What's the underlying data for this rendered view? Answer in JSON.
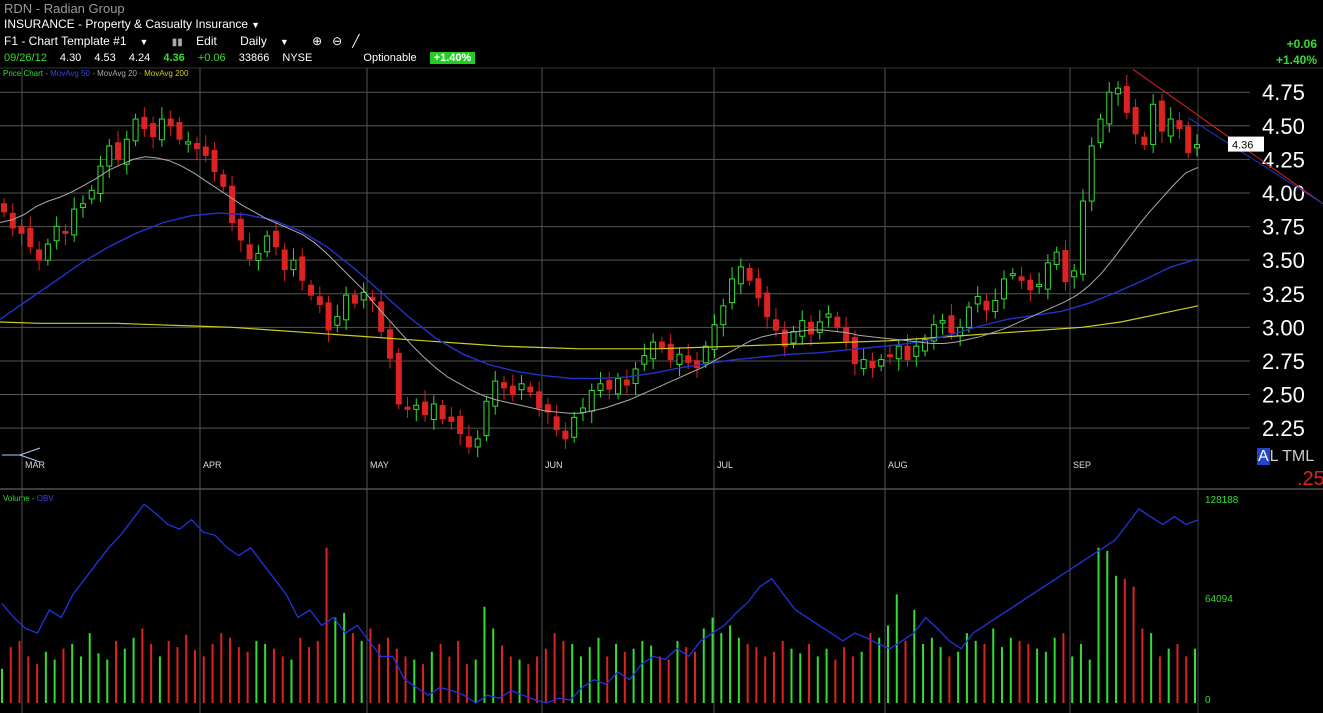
{
  "header": {
    "symbol_line": "RDN - Radian Group",
    "industry": "INSURANCE - Property & Casualty Insurance",
    "template": "F1 - Chart Template #1",
    "edit_label": "Edit",
    "interval": "Daily",
    "change_abs": "+0.06",
    "change_pct": "+1.40%"
  },
  "quote": {
    "date": "09/26/12",
    "open": "4.30",
    "high": "4.53",
    "low": "4.24",
    "close": "4.36",
    "change": "+0.06",
    "volume": "33866",
    "exchange": "NYSE",
    "optionable": "Optionable",
    "pct": "+1.40%"
  },
  "price_panel": {
    "label": "Price Chart",
    "ma1": "MovAvg 50",
    "ma2": "MovAvg 20",
    "ma3": "MovAvg 200",
    "current_price_tag": "4.36"
  },
  "volume_panel": {
    "label": "Volume",
    "obv": "OBV"
  },
  "toolbar_misc": {
    "altml": "AL TML",
    "altml_a": "A",
    "altml_rest": "L TML",
    "partial_value": ".25"
  },
  "colors": {
    "up": "#33dd33",
    "down": "#dd2222",
    "ma50": "#2233cc",
    "ma20": "#aaaaaa",
    "ma200": "#cccc22",
    "obv": "#2233dd",
    "grid": "#555555"
  },
  "chart_data": {
    "type": "candlestick",
    "price_axis": {
      "ticks": [
        "4.75",
        "4.50",
        "4.25",
        "4.00",
        "3.75",
        "3.50",
        "3.25",
        "3.00",
        "2.75",
        "2.50",
        "2.25"
      ],
      "ylim": [
        2.05,
        4.93
      ]
    },
    "month_labels": [
      "MAR",
      "APR",
      "MAY",
      "JUN",
      "JUL",
      "AUG",
      "SEP"
    ],
    "volume_axis": {
      "ticks": [
        "128188",
        "64094",
        "0"
      ],
      "ylim": [
        0,
        128188
      ]
    },
    "closes": [
      3.86,
      3.74,
      3.7,
      3.6,
      3.5,
      3.62,
      3.75,
      3.7,
      3.88,
      3.92,
      4.02,
      4.2,
      4.35,
      4.25,
      4.4,
      4.55,
      4.48,
      4.42,
      4.55,
      4.5,
      4.4,
      4.38,
      4.33,
      4.28,
      4.16,
      4.05,
      3.78,
      3.65,
      3.51,
      3.55,
      3.68,
      3.6,
      3.43,
      3.5,
      3.35,
      3.24,
      3.17,
      2.98,
      3.08,
      3.24,
      3.18,
      3.26,
      3.2,
      2.97,
      2.77,
      2.43,
      2.39,
      2.42,
      2.35,
      2.43,
      2.32,
      2.3,
      2.21,
      2.11,
      2.17,
      2.45,
      2.6,
      2.55,
      2.5,
      2.58,
      2.52,
      2.4,
      2.37,
      2.24,
      2.17,
      2.33,
      2.4,
      2.53,
      2.58,
      2.54,
      2.62,
      2.57,
      2.69,
      2.79,
      2.89,
      2.85,
      2.76,
      2.8,
      2.74,
      2.7,
      2.86,
      3.02,
      3.16,
      3.36,
      3.45,
      3.35,
      3.22,
      3.08,
      2.98,
      2.86,
      2.97,
      3.05,
      2.95,
      3.04,
      3.1,
      3.0,
      2.9,
      2.73,
      2.76,
      2.7,
      2.76,
      2.79,
      2.86,
      2.76,
      2.86,
      2.91,
      3.02,
      3.05,
      2.96,
      3.0,
      3.15,
      3.23,
      3.13,
      3.2,
      3.36,
      3.4,
      3.35,
      3.28,
      3.32,
      3.48,
      3.56,
      3.34,
      3.42,
      3.94,
      4.35,
      4.55,
      4.75,
      4.78,
      4.6,
      4.44,
      4.36,
      4.66,
      4.46,
      4.55,
      4.48,
      4.3,
      4.36
    ],
    "ma20": [
      3.78,
      3.8,
      3.84,
      3.9,
      3.94,
      3.97,
      4.01,
      4.06,
      4.11,
      4.17,
      4.21,
      4.25,
      4.27,
      4.26,
      4.24,
      4.2,
      4.15,
      4.09,
      4.03,
      3.97,
      3.91,
      3.86,
      3.81,
      3.77,
      3.73,
      3.69,
      3.63,
      3.55,
      3.46,
      3.37,
      3.28,
      3.17,
      3.07,
      2.97,
      2.87,
      2.78,
      2.7,
      2.63,
      2.58,
      2.53,
      2.49,
      2.46,
      2.44,
      2.42,
      2.4,
      2.38,
      2.37,
      2.36,
      2.36,
      2.38,
      2.4,
      2.43,
      2.46,
      2.5,
      2.54,
      2.58,
      2.62,
      2.66,
      2.7,
      2.75,
      2.8,
      2.85,
      2.9,
      2.93,
      2.95,
      2.96,
      2.97,
      2.98,
      2.98,
      2.97,
      2.96,
      2.94,
      2.93,
      2.92,
      2.91,
      2.9,
      2.89,
      2.88,
      2.88,
      2.89,
      2.91,
      2.93,
      2.96,
      2.99,
      3.03,
      3.07,
      3.11,
      3.15,
      3.19,
      3.24,
      3.31,
      3.4,
      3.51,
      3.63,
      3.75,
      3.86,
      3.96,
      4.06,
      4.15,
      4.19
    ],
    "ma50": [
      3.06,
      3.2,
      3.34,
      3.48,
      3.6,
      3.7,
      3.78,
      3.83,
      3.85,
      3.84,
      3.8,
      3.72,
      3.6,
      3.44,
      3.26,
      3.08,
      2.92,
      2.8,
      2.72,
      2.67,
      2.64,
      2.62,
      2.62,
      2.63,
      2.66,
      2.7,
      2.73,
      2.76,
      2.78,
      2.8,
      2.81,
      2.83,
      2.85,
      2.87,
      2.9,
      2.95,
      3.01,
      3.06,
      3.09,
      3.12,
      3.18,
      3.26,
      3.35,
      3.45,
      3.51
    ],
    "ma200": [
      3.04,
      3.03,
      3.03,
      3.03,
      3.02,
      3.01,
      3.0,
      2.98,
      2.96,
      2.94,
      2.92,
      2.9,
      2.88,
      2.86,
      2.85,
      2.84,
      2.84,
      2.84,
      2.85,
      2.86,
      2.87,
      2.88,
      2.89,
      2.9,
      2.92,
      2.94,
      2.96,
      2.98,
      3.0,
      3.04,
      3.1,
      3.16
    ],
    "volume": [
      22,
      36,
      40,
      30,
      25,
      33,
      28,
      35,
      38,
      30,
      45,
      32,
      28,
      40,
      35,
      42,
      48,
      38,
      30,
      40,
      36,
      44,
      34,
      30,
      38,
      45,
      42,
      36,
      33,
      40,
      38,
      35,
      30,
      28,
      42,
      36,
      40,
      100,
      55,
      58,
      45,
      40,
      48,
      38,
      42,
      35,
      30,
      28,
      25,
      33,
      38,
      30,
      40,
      25,
      28,
      62,
      48,
      37,
      30,
      28,
      25,
      30,
      35,
      45,
      40,
      38,
      30,
      36,
      42,
      30,
      38,
      33,
      35,
      40,
      37,
      30,
      28,
      40,
      36,
      33,
      48,
      55,
      45,
      50,
      42,
      38,
      36,
      30,
      33,
      40,
      35,
      32,
      38,
      30,
      35,
      28,
      36,
      30,
      33,
      45,
      42,
      50,
      70,
      40,
      60,
      38,
      42,
      36,
      30,
      33,
      45,
      40,
      38,
      48,
      36,
      42,
      40,
      38,
      35,
      33,
      42,
      45,
      30,
      38,
      28,
      100,
      98,
      82,
      80,
      75,
      48,
      45,
      30,
      35,
      38,
      30,
      35
    ],
    "obv": [
      64,
      55,
      48,
      45,
      60,
      55,
      70,
      80,
      90,
      100,
      108,
      118,
      128,
      122,
      115,
      112,
      118,
      110,
      108,
      100,
      95,
      100,
      90,
      80,
      70,
      55,
      60,
      50,
      55,
      45,
      50,
      40,
      30,
      30,
      15,
      10,
      5,
      10,
      8,
      5,
      0,
      5,
      3,
      8,
      5,
      2,
      0,
      3,
      2,
      10,
      15,
      12,
      20,
      15,
      25,
      30,
      28,
      35,
      30,
      40,
      45,
      50,
      58,
      65,
      75,
      80,
      70,
      60,
      55,
      50,
      45,
      40,
      45,
      42,
      38,
      35,
      40,
      45,
      55,
      48,
      40,
      35,
      45,
      50,
      55,
      60,
      65,
      70,
      75,
      80,
      85,
      90,
      95,
      100,
      105,
      115,
      125,
      120,
      115,
      120,
      115,
      118
    ]
  }
}
